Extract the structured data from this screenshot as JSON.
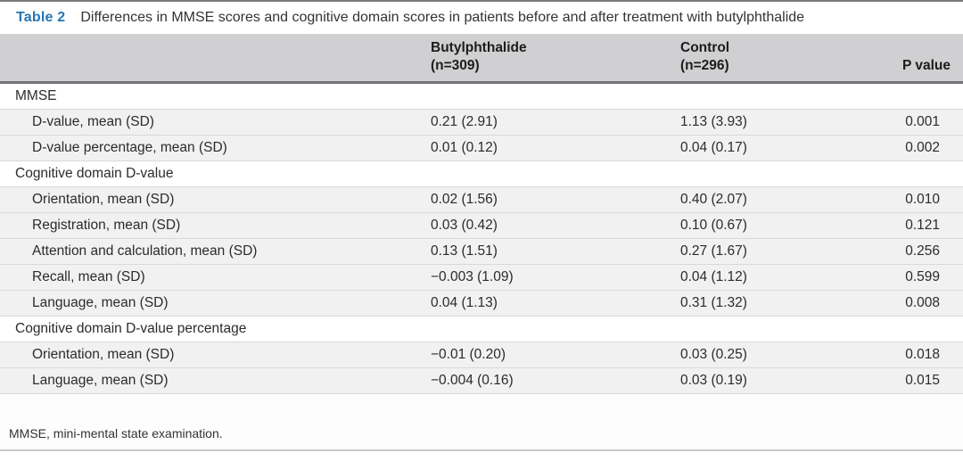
{
  "caption": {
    "label": "Table 2",
    "text": "Differences in MMSE scores and cognitive domain scores in patients before and after treatment with butylphthalide"
  },
  "header": {
    "butylphthalide": {
      "line1": "Butylphthalide",
      "line2": "(n=309)"
    },
    "control": {
      "line1": "Control",
      "line2": "(n=296)"
    },
    "p_value": "P value"
  },
  "rows": [
    {
      "type": "section",
      "label": "MMSE"
    },
    {
      "type": "data",
      "label": "D-value, mean (SD)",
      "b": "0.21 (2.91)",
      "c": "1.13 (3.93)",
      "p": "0.001"
    },
    {
      "type": "data",
      "label": "D-value percentage, mean (SD)",
      "b": "0.01 (0.12)",
      "c": "0.04 (0.17)",
      "p": "0.002"
    },
    {
      "type": "section",
      "label": "Cognitive domain D-value"
    },
    {
      "type": "data",
      "label": "Orientation, mean (SD)",
      "b": "0.02 (1.56)",
      "c": "0.40 (2.07)",
      "p": "0.010"
    },
    {
      "type": "data",
      "label": "Registration, mean (SD)",
      "b": "0.03 (0.42)",
      "c": "0.10 (0.67)",
      "p": "0.121"
    },
    {
      "type": "data",
      "label": "Attention and calculation, mean (SD)",
      "b": "0.13 (1.51)",
      "c": "0.27 (1.67)",
      "p": "0.256"
    },
    {
      "type": "data",
      "label": "Recall, mean (SD)",
      "b": "−0.003 (1.09)",
      "c": "0.04 (1.12)",
      "p": "0.599"
    },
    {
      "type": "data",
      "label": "Language, mean (SD)",
      "b": "0.04 (1.13)",
      "c": "0.31 (1.32)",
      "p": "0.008"
    },
    {
      "type": "section",
      "label": "Cognitive domain D-value percentage"
    },
    {
      "type": "data",
      "label": "Orientation, mean (SD)",
      "b": "−0.01 (0.20)",
      "c": "0.03 (0.25)",
      "p": "0.018"
    },
    {
      "type": "data",
      "label": "Language, mean (SD)",
      "b": "−0.004 (0.16)",
      "c": "0.03 (0.19)",
      "p": "0.015"
    }
  ],
  "footnote": {
    "text": "MMSE, mini-mental state examination."
  },
  "colors": {
    "accent": "#2577b6",
    "header-bg": "#d0d0d2",
    "row-shade": "#f1f1f2",
    "rule-dark": "#737478",
    "rule-light": "#d9d9d9",
    "top-rule": "#7a7a7a",
    "bottom-rule": "#c8c8c8",
    "text": "#2e2e2e"
  }
}
